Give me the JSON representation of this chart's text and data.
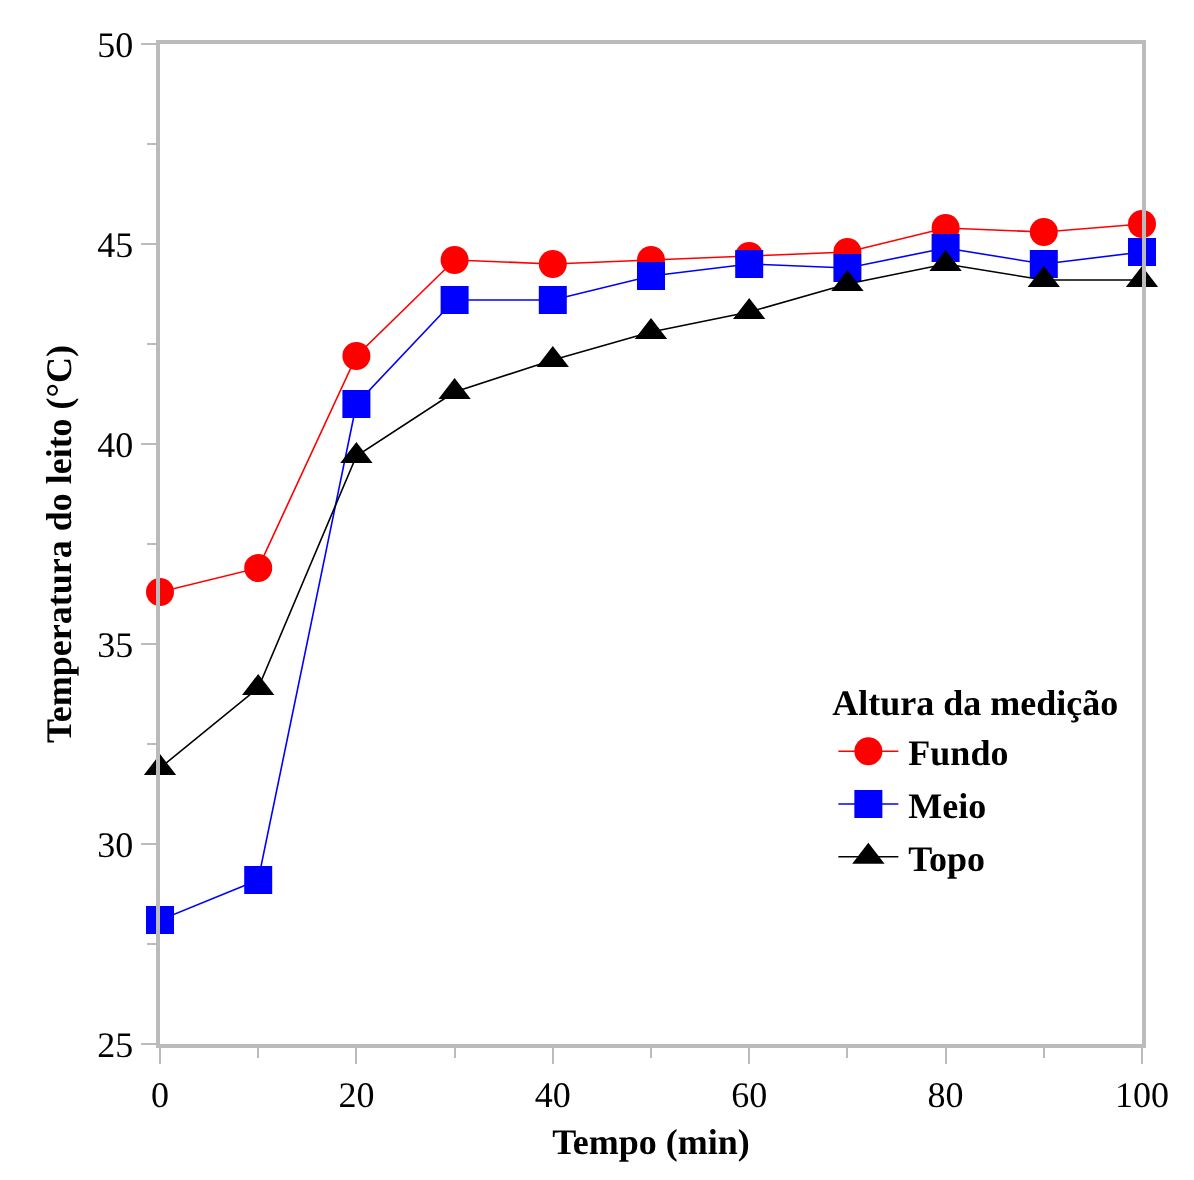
{
  "chart_data": {
    "type": "line",
    "xlabel": "Tempo (min)",
    "ylabel": "Temperatura do leito (°C)",
    "legend_title": "Altura da medição",
    "x": [
      0,
      10,
      20,
      30,
      40,
      50,
      60,
      70,
      80,
      90,
      100
    ],
    "series": [
      {
        "name": "Fundo",
        "color": "#ff0000",
        "marker": "circle",
        "values": [
          36.3,
          36.9,
          42.2,
          44.6,
          44.5,
          44.6,
          44.7,
          44.8,
          45.4,
          45.3,
          45.5
        ]
      },
      {
        "name": "Meio",
        "color": "#0000ff",
        "marker": "square",
        "values": [
          28.1,
          29.1,
          41.0,
          43.6,
          43.6,
          44.2,
          44.5,
          44.4,
          44.9,
          44.5,
          44.8
        ]
      },
      {
        "name": "Topo",
        "color": "#000000",
        "marker": "triangle",
        "values": [
          31.9,
          33.9,
          39.7,
          41.3,
          42.1,
          42.8,
          43.3,
          44.0,
          44.5,
          44.1,
          44.1
        ]
      }
    ],
    "xlim": [
      0,
      100
    ],
    "xticks": [
      0,
      20,
      40,
      60,
      80,
      100
    ],
    "ylim": [
      25,
      50
    ],
    "yticks": [
      25,
      30,
      35,
      40,
      45,
      50
    ],
    "grid": false,
    "legend": "bottom right",
    "line_style": "solid"
  }
}
